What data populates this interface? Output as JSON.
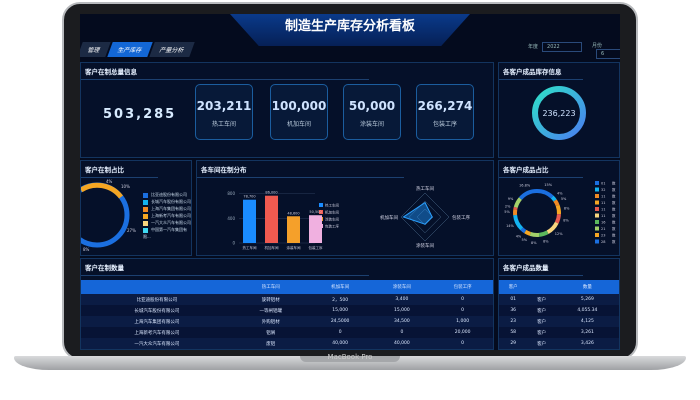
{
  "device": {
    "label": "MacBook Pro"
  },
  "header": {
    "title": "制造生产库存分析看板",
    "tabs": [
      "管理",
      "生产库存",
      "产量分析"
    ],
    "active_tab": 1,
    "year_label": "年度",
    "year_value": "2022",
    "month_label": "月份",
    "month_value": "6"
  },
  "summary": {
    "title": "客户在制总量信息",
    "total": "503,285",
    "cards": [
      {
        "value": "203,211",
        "label": "热工车间"
      },
      {
        "value": "100,000",
        "label": "机加车间"
      },
      {
        "value": "50,000",
        "label": "涂装车间"
      },
      {
        "value": "266,274",
        "label": "包装工序"
      }
    ]
  },
  "stock": {
    "title": "各客户成品库存信息",
    "value": "236,223"
  },
  "ratio": {
    "title": "客户在制占比",
    "labels": [
      "4%",
      "10%",
      "27%",
      "8%"
    ],
    "legend": [
      "比亚迪股份有限公司",
      "长城汽车股份有限公司",
      "上海汽车集团有限公司",
      "上海新考汽车有限公司",
      "一汽大众汽车有限公司",
      "中国第一汽车集团有限..."
    ],
    "colors": [
      "#1b6fe0",
      "#14b3f0",
      "#f08a24",
      "#f5a623",
      "#f8d57e",
      "#3fd9f2"
    ]
  },
  "chart_data": [
    {
      "type": "bar",
      "title": "各车间在制分布",
      "categories": [
        "热工车间",
        "机加车间",
        "涂装车间",
        "包装工序"
      ],
      "values": [
        78700,
        86000,
        48600,
        50500
      ],
      "data_labels": [
        "78,700",
        "86,000",
        "48,600",
        "50,500"
      ],
      "ytick_labels": [
        "0",
        "400",
        "800"
      ],
      "ylim": [
        0,
        100000
      ],
      "colors": [
        "#1a8cff",
        "#f05a50",
        "#f5a02a",
        "#f0b0e0"
      ]
    },
    {
      "type": "radar",
      "axes": [
        "热工车间",
        "包装工序",
        "涂装车间",
        "机加车间"
      ],
      "values": [
        0.6,
        0.3,
        0.3,
        0.9
      ]
    },
    {
      "type": "pie",
      "title": "各客户成品占比",
      "labels": [
        "15%",
        "4%",
        "5%",
        "8%",
        "8%",
        "12%",
        "8%",
        "8%",
        "5%",
        "4%",
        "14%",
        "5%",
        "2%",
        "9%",
        "16.8%"
      ],
      "values": [
        15,
        4,
        5,
        8,
        8,
        12,
        8,
        8,
        5,
        4,
        14,
        5,
        2,
        9,
        16.8
      ],
      "legend": [
        "01",
        "32",
        "11",
        "11",
        "11",
        "11",
        "16",
        "21",
        "23",
        "28"
      ],
      "legend_suffix": "数"
    }
  ],
  "wip_table": {
    "title": "客户在制数量",
    "columns": [
      "",
      "热工车间",
      "机加车间",
      "涂装车间",
      "包装工序"
    ],
    "rows": [
      [
        "比亚迪股份有限公司",
        "旋转铝材",
        "2，500",
        "3,400",
        "0"
      ],
      [
        "长城汽车股份有限公司",
        "一等闸铝罐",
        "15,000",
        "15,000",
        "0"
      ],
      [
        "上海汽车集团有限公司",
        "外购铝材",
        "24,5000",
        "34,500",
        "1,000"
      ],
      [
        "上海新考汽车有限公司",
        "铝屑",
        "0",
        "0",
        "20,000"
      ],
      [
        "一汽大众汽车有限公司",
        "废铝",
        "40,000",
        "40,000",
        "0"
      ]
    ]
  },
  "fg_table": {
    "title": "各客户成品数量",
    "columns": [
      "客户",
      "数量"
    ],
    "rows": [
      [
        "01",
        "客户",
        "5,269"
      ],
      [
        "36",
        "客户",
        "4,055.34"
      ],
      [
        "23",
        "客户",
        "4,125"
      ],
      [
        "58",
        "客户",
        "3,261"
      ],
      [
        "29",
        "客户",
        "3,426"
      ]
    ]
  }
}
